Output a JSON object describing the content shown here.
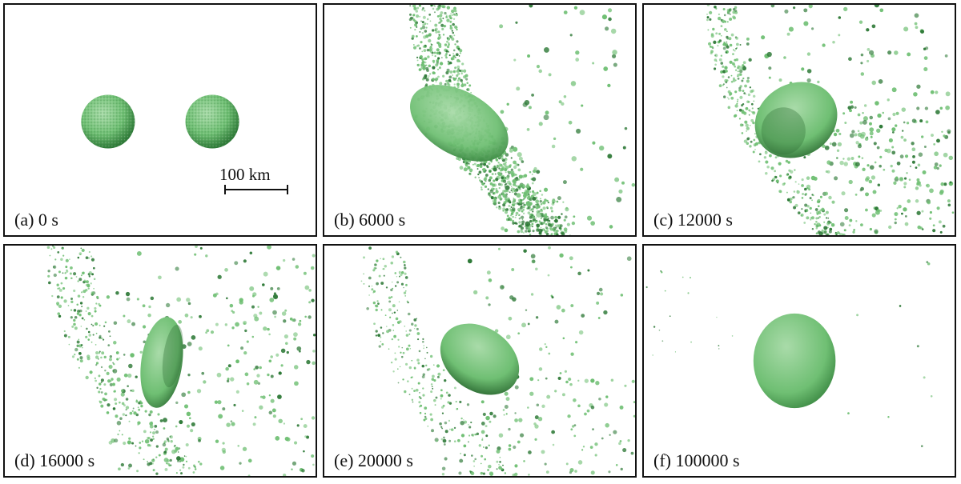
{
  "figure": {
    "colors": {
      "particle": "#6fbf73",
      "particle_dark": "#2f7a38",
      "particle_light": "#a9dba9",
      "frame": "#111111"
    },
    "scale_bar": {
      "label": "100 km"
    },
    "panels": [
      {
        "label": "(a) 0 s"
      },
      {
        "label": "(b) 6000 s"
      },
      {
        "label": "(c) 12000 s"
      },
      {
        "label": "(d) 16000 s"
      },
      {
        "label": "(e) 20000 s"
      },
      {
        "label": "(f) 100000 s"
      }
    ]
  }
}
